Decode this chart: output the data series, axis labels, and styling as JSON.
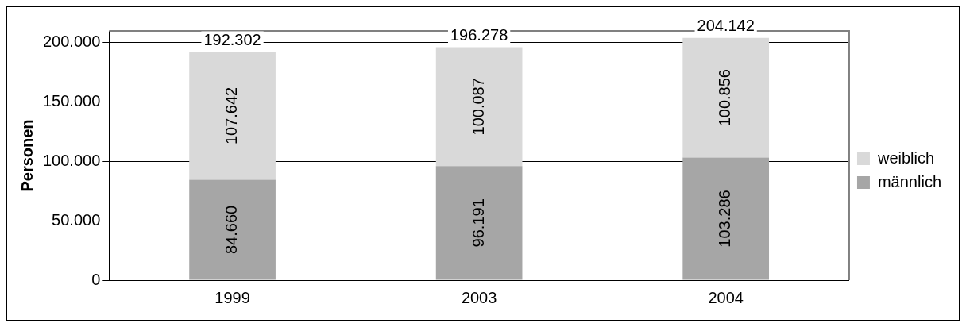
{
  "chart_data": {
    "type": "bar",
    "stacked": true,
    "ylabel": "Personen",
    "categories": [
      "1999",
      "2003",
      "2004"
    ],
    "series": [
      {
        "name": "männlich",
        "color": "#a6a6a6",
        "values": [
          84660,
          96191,
          103286
        ],
        "value_labels": [
          "84.660",
          "96.191",
          "103.286"
        ]
      },
      {
        "name": "weiblich",
        "color": "#d9d9d9",
        "values": [
          107642,
          100087,
          100856
        ],
        "value_labels": [
          "107.642",
          "100.087",
          "100.856"
        ]
      }
    ],
    "totals": [
      "192.302",
      "196.278",
      "204.142"
    ],
    "ylim": [
      0,
      210000
    ],
    "yticks": [
      {
        "value": 0,
        "label": "0"
      },
      {
        "value": 50000,
        "label": "50.000"
      },
      {
        "value": 100000,
        "label": "100.000"
      },
      {
        "value": 150000,
        "label": "150.000"
      },
      {
        "value": 200000,
        "label": "200.000"
      }
    ],
    "grid": "y",
    "legend": "right"
  }
}
